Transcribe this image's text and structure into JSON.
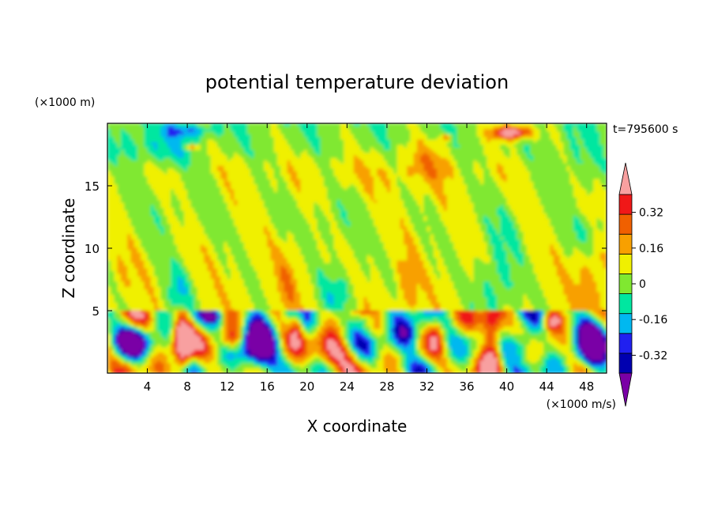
{
  "chart_data": {
    "type": "heatmap",
    "title": "potential temperature deviation",
    "xlabel": "X coordinate",
    "ylabel": "Z coordinate",
    "x_unit": "(×1000 m/s)",
    "y_unit": "(×1000 m)",
    "time_label": "t=795600 s",
    "xlim": [
      0,
      50
    ],
    "ylim": [
      0,
      20
    ],
    "x_ticks": [
      4,
      8,
      12,
      16,
      20,
      24,
      28,
      32,
      36,
      40,
      44,
      48
    ],
    "y_ticks": [
      5,
      10,
      15
    ],
    "colorbar": {
      "levels": [
        -0.4,
        -0.32,
        -0.24,
        -0.16,
        -0.08,
        0,
        0.08,
        0.16,
        0.24,
        0.32,
        0.4
      ],
      "labels": [
        "0.32",
        "0.16",
        "0",
        "-0.16",
        "-0.32"
      ],
      "label_values": [
        0.32,
        0.16,
        0,
        -0.16,
        -0.32
      ],
      "colors": [
        "#7a00a6",
        "#0000b0",
        "#2020f0",
        "#00b8f0",
        "#00e7a0",
        "#80e830",
        "#f0f000",
        "#f8a000",
        "#f06000",
        "#f01818",
        "#f8a0a0"
      ]
    }
  }
}
